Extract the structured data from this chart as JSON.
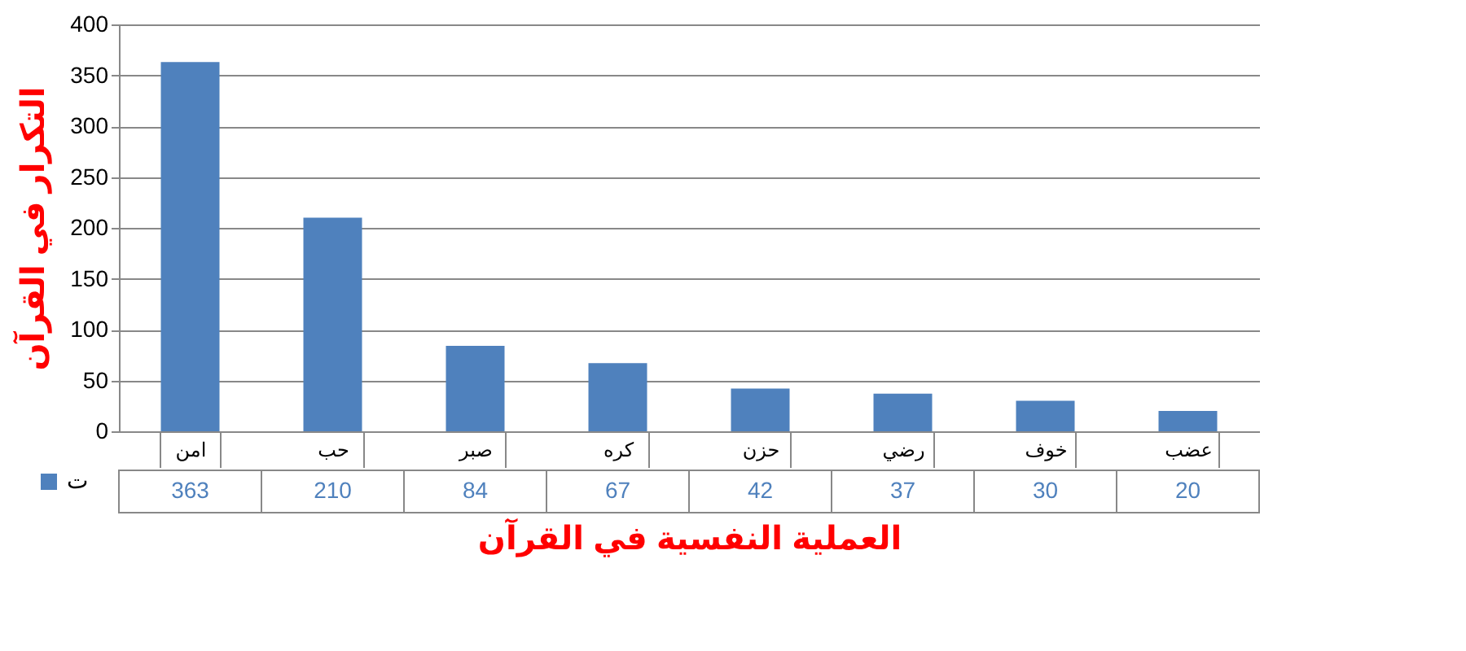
{
  "chart_data": {
    "type": "bar",
    "xlabel": "العملية النفسية في القرآن",
    "ylabel": "التكرار في القرآن",
    "categories": [
      "امن",
      "حب",
      "صبر",
      "كره",
      "حزن",
      "رضي",
      "خوف",
      "عضب"
    ],
    "series": [
      {
        "name": "ت",
        "color": "#4f81bd",
        "values": [
          363,
          210,
          84,
          67,
          42,
          37,
          30,
          20
        ]
      }
    ],
    "ylim": [
      0,
      400
    ],
    "yticks": [
      0,
      50,
      100,
      150,
      200,
      250,
      300,
      350,
      400
    ],
    "grid": "y",
    "data_labels": true,
    "legend": "bottom left"
  }
}
